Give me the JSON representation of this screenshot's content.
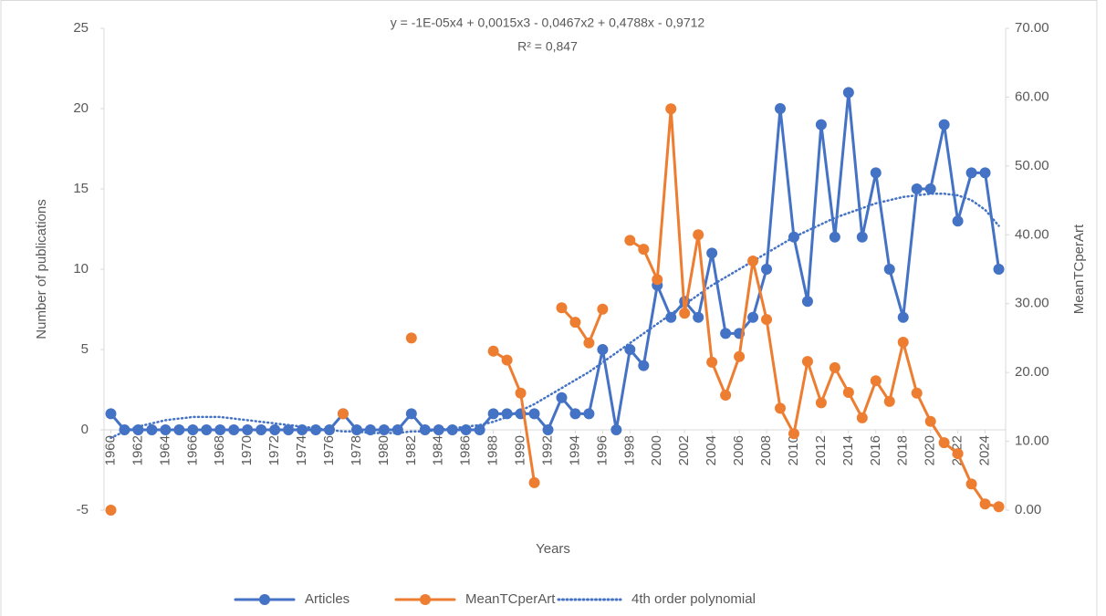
{
  "chart_data": {
    "type": "line",
    "annotations": [
      "y = -1E-05x4 + 0,0015x3 - 0,0467x2 + 0,4788x - 0,9712",
      "R² = 0,847"
    ],
    "x_label": "Years",
    "y_label": "Number of publications",
    "y2_label": "MeanTCperArt",
    "x": [
      1960,
      1961,
      1962,
      1963,
      1964,
      1965,
      1966,
      1967,
      1968,
      1969,
      1970,
      1971,
      1972,
      1973,
      1974,
      1975,
      1976,
      1977,
      1978,
      1979,
      1980,
      1981,
      1982,
      1983,
      1984,
      1985,
      1986,
      1987,
      1988,
      1989,
      1990,
      1991,
      1992,
      1993,
      1994,
      1995,
      1996,
      1997,
      1998,
      1999,
      2000,
      2001,
      2002,
      2003,
      2004,
      2005,
      2006,
      2007,
      2008,
      2009,
      2010,
      2011,
      2012,
      2013,
      2014,
      2015,
      2016,
      2017,
      2018,
      2019,
      2020,
      2021,
      2022,
      2023,
      2024,
      2025
    ],
    "xlim": [
      1959.5,
      2025.5
    ],
    "xticks": [
      1960,
      1962,
      1964,
      1966,
      1968,
      1970,
      1972,
      1974,
      1976,
      1978,
      1980,
      1982,
      1984,
      1986,
      1988,
      1990,
      1992,
      1994,
      1996,
      1998,
      2000,
      2002,
      2004,
      2006,
      2008,
      2010,
      2012,
      2014,
      2016,
      2018,
      2020,
      2022,
      2024
    ],
    "ylim": [
      -5,
      25
    ],
    "yticks": [
      -5,
      0,
      5,
      10,
      15,
      20,
      25
    ],
    "y2lim": [
      0,
      70
    ],
    "y2ticks": [
      {
        "value": 0,
        "label": "0.00"
      },
      {
        "value": 10,
        "label": "10.00"
      },
      {
        "value": 20,
        "label": "20.00"
      },
      {
        "value": 30,
        "label": "30.00"
      },
      {
        "value": 40,
        "label": "40.00"
      },
      {
        "value": 50,
        "label": "50.00"
      },
      {
        "value": 60,
        "label": "60.00"
      },
      {
        "value": 70,
        "label": "70.00"
      }
    ],
    "grid": false,
    "legend": "bottom",
    "series": [
      {
        "name": "Articles",
        "color": "#4472c4",
        "style": "solid",
        "markers": true,
        "values": [
          1,
          0,
          0,
          0,
          0,
          0,
          0,
          0,
          0,
          0,
          0,
          0,
          0,
          0,
          0,
          0,
          0,
          1,
          0,
          0,
          0,
          0,
          1,
          0,
          0,
          0,
          0,
          0,
          1,
          1,
          1,
          1,
          0,
          2,
          1,
          1,
          5,
          0,
          5,
          4,
          9,
          7,
          8,
          7,
          11,
          6,
          6,
          7,
          10,
          20,
          12,
          8,
          19,
          12,
          21,
          12,
          16,
          10,
          7,
          15,
          15,
          19,
          13,
          16,
          16,
          10
        ]
      },
      {
        "name": "MeanTCperArt",
        "color": "#ed7d31",
        "style": "solid",
        "markers": true,
        "axis": "y2",
        "values": [
          0,
          null,
          null,
          null,
          null,
          null,
          null,
          null,
          null,
          null,
          null,
          null,
          null,
          null,
          null,
          null,
          null,
          14,
          null,
          null,
          null,
          null,
          25,
          null,
          null,
          null,
          null,
          null,
          23.1,
          21.8,
          17,
          4,
          null,
          29.4,
          27.3,
          24.3,
          29.2,
          null,
          39.2,
          37.9,
          33.5,
          58.3,
          28.6,
          40,
          21.5,
          16.7,
          22.3,
          36.2,
          27.7,
          14.8,
          11.1,
          21.6,
          15.6,
          20.7,
          17.1,
          13.4,
          18.8,
          15.8,
          24.4,
          17,
          12.9,
          9.8,
          8.2,
          3.8,
          0.9,
          0.5
        ]
      },
      {
        "name": "4th order polynomial",
        "color": "#4472c4",
        "style": "dotted",
        "markers": false,
        "values": [
          -0.5,
          -0.1,
          0.2,
          0.4,
          0.6,
          0.7,
          0.8,
          0.8,
          0.8,
          0.7,
          0.6,
          0.5,
          0.4,
          0.3,
          0.2,
          0.1,
          0,
          -0.1,
          -0.1,
          -0.2,
          -0.2,
          -0.2,
          -0.1,
          -0.1,
          0,
          0.1,
          0.2,
          0.3,
          0.5,
          0.8,
          1.2,
          1.6,
          2.1,
          2.6,
          3.1,
          3.6,
          4.2,
          4.8,
          5.4,
          6,
          6.6,
          7.2,
          7.8,
          8.4,
          9,
          9.5,
          10,
          10.5,
          11,
          11.5,
          12,
          12.4,
          12.8,
          13.2,
          13.5,
          13.8,
          14.1,
          14.3,
          14.5,
          14.6,
          14.7,
          14.7,
          14.6,
          14.3,
          13.7,
          12.7
        ]
      }
    ]
  }
}
